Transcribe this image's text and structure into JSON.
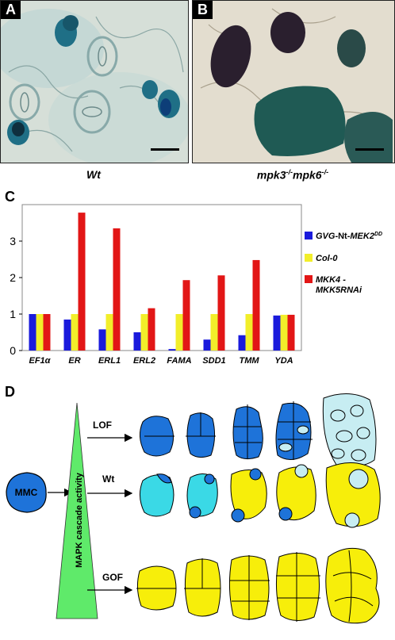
{
  "panels": {
    "a": {
      "letter": "A",
      "caption": "Wt"
    },
    "b": {
      "letter": "B",
      "caption": "mpk3-/-mpk6-/-",
      "caption_base1": "mpk3",
      "caption_sup1": "-/-",
      "caption_base2": "mpk6",
      "caption_sup2": "-/-"
    },
    "c": {
      "letter": "C"
    },
    "d": {
      "letter": "D"
    }
  },
  "colors": {
    "stain_blue": "#1f6f86",
    "dark_cells": "#2a1f2e",
    "gvg": "#1a1adc",
    "col0": "#f2ee2a",
    "mkk": "#e21616",
    "lof_cell": "#1e73d9",
    "mmc_cell": "#1e73d9",
    "wt_early": "#3ad9e6",
    "yellow_cell": "#f7ee0a",
    "stomata_light": "#c7edf2",
    "triangle": "#5fea6a"
  },
  "chart_data": {
    "type": "bar",
    "categories": [
      "EF1α",
      "ER",
      "ERL1",
      "ERL2",
      "FAMA",
      "SDD1",
      "TMM",
      "YDA"
    ],
    "ylim": [
      0,
      4
    ],
    "yticks": [
      "0",
      "1",
      "2",
      "3"
    ],
    "series": [
      {
        "name": "GVG-Nt-MEK2DD",
        "color": "#1a1adc",
        "values": [
          1.0,
          0.85,
          0.58,
          0.5,
          0.04,
          0.3,
          0.42,
          0.96
        ]
      },
      {
        "name": "Col-0",
        "color": "#f2ee2a",
        "values": [
          1.0,
          1.0,
          1.0,
          1.0,
          1.0,
          1.0,
          1.0,
          0.98
        ]
      },
      {
        "name": "MKK4 - MKK5RNAi",
        "color": "#e21616",
        "values": [
          1.0,
          3.78,
          3.35,
          1.16,
          1.93,
          2.06,
          2.48,
          0.98
        ]
      }
    ],
    "legend": {
      "gvg_base": "GVG",
      "gvg_mid": "-Nt-",
      "gvg_gene": "MEK2",
      "gvg_sup": "DD",
      "col0": "Col-0",
      "mkk_line1": "MKK4 -",
      "mkk_line2": "MKK5RNAi"
    }
  },
  "diagram": {
    "triangle_label": "MAPK cascade activity",
    "mmc_label": "MMC",
    "rows": [
      {
        "label": "LOF"
      },
      {
        "label": "Wt"
      },
      {
        "label": "GOF"
      }
    ]
  }
}
